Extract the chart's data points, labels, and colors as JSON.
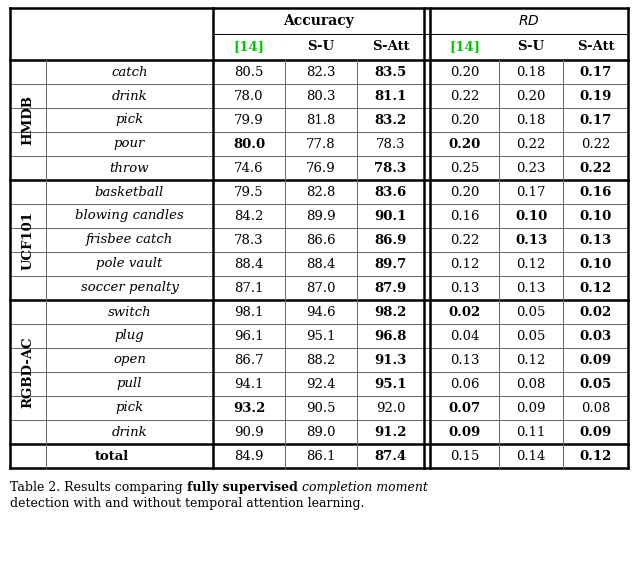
{
  "sections": [
    {
      "label": "HMDB",
      "rows": [
        {
          "action": "catch",
          "acc14": "80.5",
          "accSU": "82.3",
          "accSAtt": "83.5",
          "rd14": "0.20",
          "rdSU": "0.18",
          "rdSAtt": "0.17",
          "bold": {
            "accSAtt": true,
            "rdSAtt": true
          }
        },
        {
          "action": "drink",
          "acc14": "78.0",
          "accSU": "80.3",
          "accSAtt": "81.1",
          "rd14": "0.22",
          "rdSU": "0.20",
          "rdSAtt": "0.19",
          "bold": {
            "accSAtt": true,
            "rdSAtt": true
          }
        },
        {
          "action": "pick",
          "acc14": "79.9",
          "accSU": "81.8",
          "accSAtt": "83.2",
          "rd14": "0.20",
          "rdSU": "0.18",
          "rdSAtt": "0.17",
          "bold": {
            "accSAtt": true,
            "rdSAtt": true
          }
        },
        {
          "action": "pour",
          "acc14": "80.0",
          "accSU": "77.8",
          "accSAtt": "78.3",
          "rd14": "0.20",
          "rdSU": "0.22",
          "rdSAtt": "0.22",
          "bold": {
            "acc14": true,
            "rd14": true
          }
        },
        {
          "action": "throw",
          "acc14": "74.6",
          "accSU": "76.9",
          "accSAtt": "78.3",
          "rd14": "0.25",
          "rdSU": "0.23",
          "rdSAtt": "0.22",
          "bold": {
            "accSAtt": true,
            "rdSAtt": true
          }
        }
      ]
    },
    {
      "label": "UCF101",
      "rows": [
        {
          "action": "basketball",
          "acc14": "79.5",
          "accSU": "82.8",
          "accSAtt": "83.6",
          "rd14": "0.20",
          "rdSU": "0.17",
          "rdSAtt": "0.16",
          "bold": {
            "accSAtt": true,
            "rdSAtt": true
          }
        },
        {
          "action": "blowing candles",
          "acc14": "84.2",
          "accSU": "89.9",
          "accSAtt": "90.1",
          "rd14": "0.16",
          "rdSU": "0.10",
          "rdSAtt": "0.10",
          "bold": {
            "accSAtt": true,
            "rdSU": true,
            "rdSAtt": true
          }
        },
        {
          "action": "frisbee catch",
          "acc14": "78.3",
          "accSU": "86.6",
          "accSAtt": "86.9",
          "rd14": "0.22",
          "rdSU": "0.13",
          "rdSAtt": "0.13",
          "bold": {
            "accSAtt": true,
            "rdSU": true,
            "rdSAtt": true
          }
        },
        {
          "action": "pole vault",
          "acc14": "88.4",
          "accSU": "88.4",
          "accSAtt": "89.7",
          "rd14": "0.12",
          "rdSU": "0.12",
          "rdSAtt": "0.10",
          "bold": {
            "accSAtt": true,
            "rdSAtt": true
          }
        },
        {
          "action": "soccer penalty",
          "acc14": "87.1",
          "accSU": "87.0",
          "accSAtt": "87.9",
          "rd14": "0.13",
          "rdSU": "0.13",
          "rdSAtt": "0.12",
          "bold": {
            "accSAtt": true,
            "rdSAtt": true
          }
        }
      ]
    },
    {
      "label": "RGBD-AC",
      "rows": [
        {
          "action": "switch",
          "acc14": "98.1",
          "accSU": "94.6",
          "accSAtt": "98.2",
          "rd14": "0.02",
          "rdSU": "0.05",
          "rdSAtt": "0.02",
          "bold": {
            "accSAtt": true,
            "rd14": true,
            "rdSAtt": true
          }
        },
        {
          "action": "plug",
          "acc14": "96.1",
          "accSU": "95.1",
          "accSAtt": "96.8",
          "rd14": "0.04",
          "rdSU": "0.05",
          "rdSAtt": "0.03",
          "bold": {
            "accSAtt": true,
            "rdSAtt": true
          }
        },
        {
          "action": "open",
          "acc14": "86.7",
          "accSU": "88.2",
          "accSAtt": "91.3",
          "rd14": "0.13",
          "rdSU": "0.12",
          "rdSAtt": "0.09",
          "bold": {
            "accSAtt": true,
            "rdSAtt": true
          }
        },
        {
          "action": "pull",
          "acc14": "94.1",
          "accSU": "92.4",
          "accSAtt": "95.1",
          "rd14": "0.06",
          "rdSU": "0.08",
          "rdSAtt": "0.05",
          "bold": {
            "accSAtt": true,
            "rdSAtt": true
          }
        },
        {
          "action": "pick",
          "acc14": "93.2",
          "accSU": "90.5",
          "accSAtt": "92.0",
          "rd14": "0.07",
          "rdSU": "0.09",
          "rdSAtt": "0.08",
          "bold": {
            "acc14": true,
            "rd14": true
          }
        },
        {
          "action": "drink",
          "acc14": "90.9",
          "accSU": "89.0",
          "accSAtt": "91.2",
          "rd14": "0.09",
          "rdSU": "0.11",
          "rdSAtt": "0.09",
          "bold": {
            "accSAtt": true,
            "rd14": true,
            "rdSAtt": true
          }
        }
      ]
    }
  ],
  "total_row": {
    "acc14": "84.9",
    "accSU": "86.1",
    "accSAtt": "87.4",
    "rd14": "0.15",
    "rdSU": "0.14",
    "rdSAtt": "0.12",
    "bold": {
      "accSAtt": true,
      "rdSAtt": true
    }
  },
  "green_color": "#00cc00",
  "bg_color": "#ffffff"
}
